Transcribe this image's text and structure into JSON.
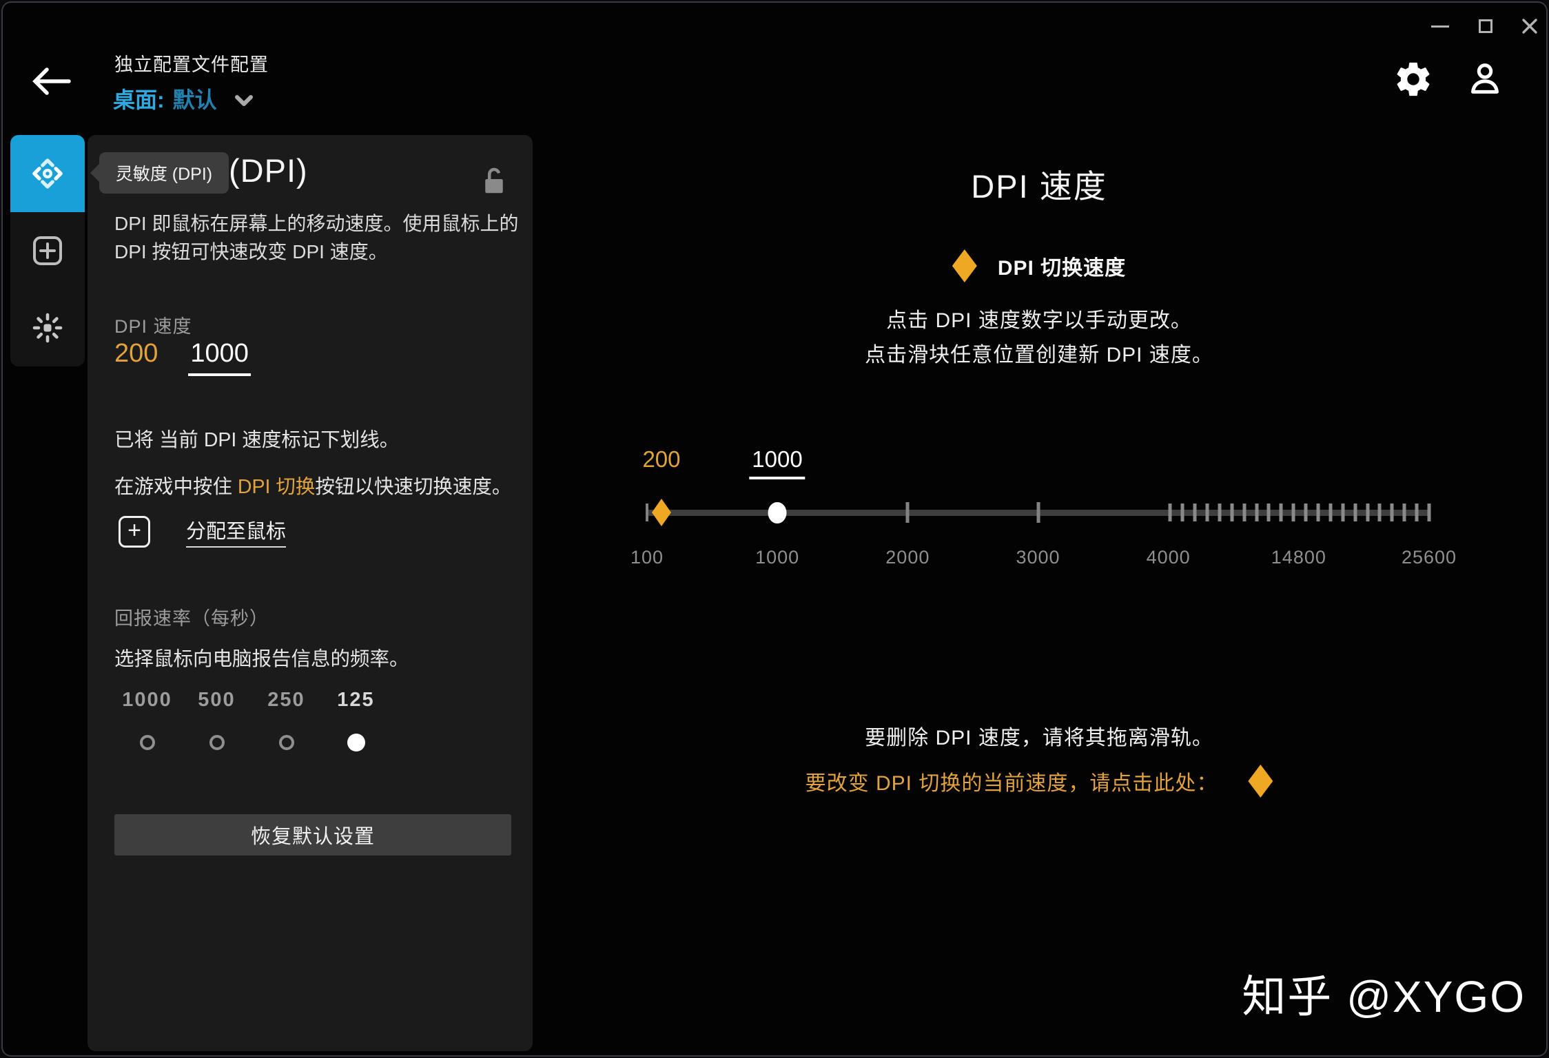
{
  "header": {
    "title": "独立配置文件配置",
    "profile_label": "桌面:",
    "profile_value": "默认"
  },
  "tooltip": {
    "text": "灵敏度 (DPI)"
  },
  "sidebar": {
    "items": [
      {
        "id": "sensitivity-dpi",
        "active": true
      },
      {
        "id": "add-command",
        "active": false
      },
      {
        "id": "lighting",
        "active": false
      }
    ]
  },
  "panel": {
    "title_visible": "(DPI)",
    "description": "DPI 即鼠标在屏幕上的移动速度。使用鼠标上的 DPI 按钮可快速改变 DPI 速度。",
    "underline_note": "已将 当前 DPI 速度标记下划线。",
    "game_note_prefix": "在游戏中按住 ",
    "game_note_highlight": "DPI 切换",
    "game_note_suffix": "按钮以快速切换速度。",
    "assign_label": "分配至鼠标",
    "reset_button": "恢复默认设置"
  },
  "dpi_speed": {
    "label": "DPI 速度",
    "values": [
      {
        "value": "200",
        "toggle": true,
        "current": false
      },
      {
        "value": "1000",
        "toggle": false,
        "current": true
      }
    ]
  },
  "report_rate": {
    "label": "回报速率（每秒）",
    "description": "选择鼠标向电脑报告信息的频率。",
    "options": [
      {
        "label": "1000",
        "selected": false
      },
      {
        "label": "500",
        "selected": false
      },
      {
        "label": "250",
        "selected": false
      },
      {
        "label": "125",
        "selected": true
      }
    ]
  },
  "main": {
    "title": "DPI 速度",
    "toggle_speed_label": "DPI 切换速度",
    "instruction_1": "点击 DPI 速度数字以手动更改。",
    "instruction_2": "点击滑块任意位置创建新 DPI 速度。",
    "delete_note": "要删除 DPI 速度，请将其拖离滑轨。",
    "change_note": "要改变 DPI 切换的当前速度，请点击此处：",
    "watermark": "知乎 @XYGO"
  },
  "slider": {
    "axis_labels": [
      "100",
      "1000",
      "2000",
      "3000",
      "4000",
      "14800",
      "25600"
    ],
    "value_labels": [
      {
        "text": "200",
        "percent": 1.85,
        "style": "toggle"
      },
      {
        "text": "1000",
        "percent": 16.65,
        "style": "current"
      }
    ],
    "markers": [
      {
        "shape": "diamond",
        "percent": 1.85,
        "value": "200"
      },
      {
        "shape": "dot",
        "percent": 16.65,
        "value": "1000"
      }
    ],
    "end_tick_percent": 0,
    "major_tick_percents": [
      33.333,
      50
    ],
    "minor_ticks": {
      "start_percent": 66.9,
      "end_percent": 100,
      "count": 22
    }
  },
  "colors": {
    "accent_blue": "#1aa0d8",
    "profile_label_blue": "#2fa9df",
    "profile_value_blue": "#2381af",
    "gold": "#efa823",
    "gold_text": "#e2a33c",
    "panel_bg": "#1b1b1b",
    "sidebar_bg": "#141414",
    "tooltip_bg": "#3d3d3d",
    "button_bg": "#3e3e3e",
    "track_gray": "#3e3e3e",
    "muted_gray": "#9c9c9c"
  }
}
